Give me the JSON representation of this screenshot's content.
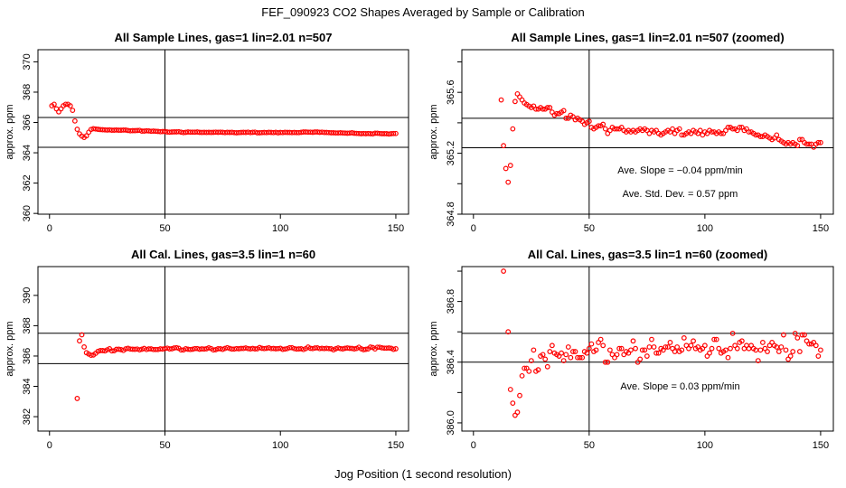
{
  "chart_data": {
    "title": "FEF_090923  CO2 Shapes Averaged by Sample or Calibration",
    "xlabel": "Jog Position (1 second resolution)",
    "point_color": "#ff0000",
    "series": {
      "sample": {
        "x_range": [
          1,
          150
        ],
        "y": [
          367.1,
          367.2,
          366.9,
          366.7,
          366.9,
          367.1,
          367.2,
          367.2,
          367.1,
          366.8,
          366.1,
          365.55,
          365.25,
          365.1,
          365.01,
          365.12,
          365.36,
          365.54,
          365.59,
          365.57,
          365.55,
          365.53,
          365.52,
          365.51,
          365.5,
          365.51,
          365.49,
          365.49,
          365.5,
          365.49,
          365.49,
          365.5,
          365.5,
          365.47,
          365.45,
          365.46,
          365.46,
          365.47,
          365.48,
          365.43,
          365.43,
          365.45,
          365.44,
          365.42,
          365.43,
          365.42,
          365.41,
          365.39,
          365.4,
          365.41,
          365.37,
          365.36,
          365.37,
          365.38,
          365.38,
          365.39,
          365.36,
          365.33,
          365.35,
          365.37,
          365.36,
          365.36,
          365.36,
          365.37,
          365.35,
          365.34,
          365.35,
          365.34,
          365.35,
          365.34,
          365.35,
          365.36,
          365.35,
          365.36,
          365.35,
          365.33,
          365.35,
          365.34,
          365.35,
          365.33,
          365.32,
          365.33,
          365.34,
          365.35,
          365.34,
          365.36,
          365.33,
          365.35,
          365.36,
          365.32,
          365.32,
          365.33,
          365.34,
          365.33,
          365.35,
          365.34,
          365.33,
          365.35,
          365.32,
          365.34,
          365.33,
          365.35,
          365.34,
          365.34,
          365.33,
          365.34,
          365.33,
          365.33,
          365.35,
          365.37,
          365.37,
          365.36,
          365.36,
          365.35,
          365.37,
          365.37,
          365.35,
          365.36,
          365.34,
          365.34,
          365.33,
          365.32,
          365.32,
          365.31,
          365.31,
          365.32,
          365.31,
          365.3,
          365.29,
          365.3,
          365.32,
          365.29,
          365.28,
          365.27,
          365.26,
          365.27,
          365.26,
          365.27,
          365.26,
          365.25,
          365.29,
          365.29,
          365.27,
          365.26,
          365.26,
          365.26,
          365.24,
          365.26,
          365.27,
          365.27
        ]
      },
      "cal": {
        "x_range": [
          12,
          150
        ],
        "y": [
          383.2,
          387.0,
          387.4,
          386.6,
          386.22,
          386.13,
          386.05,
          386.07,
          386.18,
          386.31,
          386.36,
          386.36,
          386.34,
          386.41,
          386.48,
          386.34,
          386.35,
          386.44,
          386.45,
          386.42,
          386.37,
          386.47,
          386.51,
          386.46,
          386.45,
          386.44,
          386.46,
          386.41,
          386.45,
          386.5,
          386.43,
          386.47,
          386.47,
          386.43,
          386.43,
          386.43,
          386.47,
          386.46,
          386.49,
          386.52,
          386.47,
          386.48,
          386.53,
          386.55,
          386.51,
          386.4,
          386.4,
          386.48,
          386.45,
          386.43,
          386.45,
          386.49,
          386.49,
          386.45,
          386.47,
          386.46,
          386.48,
          386.54,
          386.49,
          386.4,
          386.42,
          386.48,
          386.48,
          386.44,
          386.5,
          386.55,
          386.5,
          386.46,
          386.46,
          386.49,
          386.48,
          386.5,
          386.5,
          386.53,
          386.49,
          386.47,
          386.5,
          386.47,
          386.48,
          386.56,
          386.51,
          386.49,
          386.51,
          386.54,
          386.49,
          386.5,
          386.48,
          386.49,
          386.51,
          386.44,
          386.46,
          386.49,
          386.55,
          386.55,
          386.49,
          386.46,
          386.47,
          386.48,
          386.43,
          386.49,
          386.59,
          386.51,
          386.49,
          386.53,
          386.54,
          386.49,
          386.51,
          386.49,
          386.51,
          386.49,
          386.48,
          386.41,
          386.48,
          386.53,
          386.49,
          386.47,
          386.51,
          386.53,
          386.51,
          386.5,
          386.47,
          386.5,
          386.58,
          386.48,
          386.42,
          386.44,
          386.47,
          386.59,
          386.56,
          386.47,
          386.58,
          386.58,
          386.54,
          386.52,
          386.52,
          386.53,
          386.51,
          386.44,
          386.48
        ]
      }
    },
    "panels": [
      {
        "type": "scatter",
        "title": "All Sample Lines, gas=1 lin=2.01 n=507",
        "ylabel": "approx. ppm",
        "series": "sample",
        "xlim": [
          -5,
          155.5
        ],
        "ylim": [
          359.95,
          370.8
        ],
        "xticks": [
          0,
          50,
          100,
          150
        ],
        "yticks": [
          360,
          362,
          364,
          366,
          368,
          370
        ],
        "ytick_labels": [
          "360",
          "362",
          "364",
          "366",
          "368",
          "370"
        ],
        "hlines": [
          366.33,
          364.36
        ],
        "vline": 50,
        "annotations": []
      },
      {
        "type": "scatter",
        "title": "All Sample Lines, gas=1 lin=2.01 n=507 (zoomed)",
        "ylabel": "approx. ppm",
        "series": "sample",
        "xlim": [
          -5,
          155.5
        ],
        "ylim": [
          364.8,
          365.88
        ],
        "xticks": [
          0,
          50,
          100,
          150
        ],
        "yticks": [
          364.8,
          365.0,
          365.2,
          365.4,
          365.6,
          365.8
        ],
        "ytick_labels": [
          "364.8",
          "",
          "365.2",
          "",
          "365.6",
          ""
        ],
        "hlines": [
          365.43,
          365.236
        ],
        "vline": 50,
        "annotations": [
          "Ave. Slope =  −0.04  ppm/min",
          "Ave. Std. Dev. =  0.57  ppm"
        ]
      },
      {
        "type": "scatter",
        "title": "All Cal. Lines, gas=3.5 lin=1 n=60",
        "ylabel": "approx. ppm",
        "series": "cal",
        "xlim": [
          -5,
          155.5
        ],
        "ylim": [
          381.05,
          391.9
        ],
        "xticks": [
          0,
          50,
          100,
          150
        ],
        "yticks": [
          382,
          384,
          386,
          388,
          390
        ],
        "ytick_labels": [
          "382",
          "384",
          "386",
          "388",
          "390"
        ],
        "hlines": [
          387.5,
          385.5
        ],
        "vline": 50,
        "annotations": []
      },
      {
        "type": "scatter",
        "title": "All Cal. Lines, gas=3.5 lin=1 n=60 (zoomed)",
        "ylabel": "approx. ppm",
        "series": "cal",
        "xlim": [
          -5,
          155.5
        ],
        "ylim": [
          385.946,
          387.03
        ],
        "xticks": [
          0,
          50,
          100,
          150
        ],
        "yticks": [
          386.0,
          386.2,
          386.4,
          386.6,
          386.8,
          387.0
        ],
        "ytick_labels": [
          "386.0",
          "",
          "386.4",
          "",
          "386.8",
          ""
        ],
        "hlines": [
          386.59,
          386.4
        ],
        "vline": 50,
        "annotations": [
          "Ave. Slope =  0.03  ppm/min"
        ]
      }
    ]
  }
}
